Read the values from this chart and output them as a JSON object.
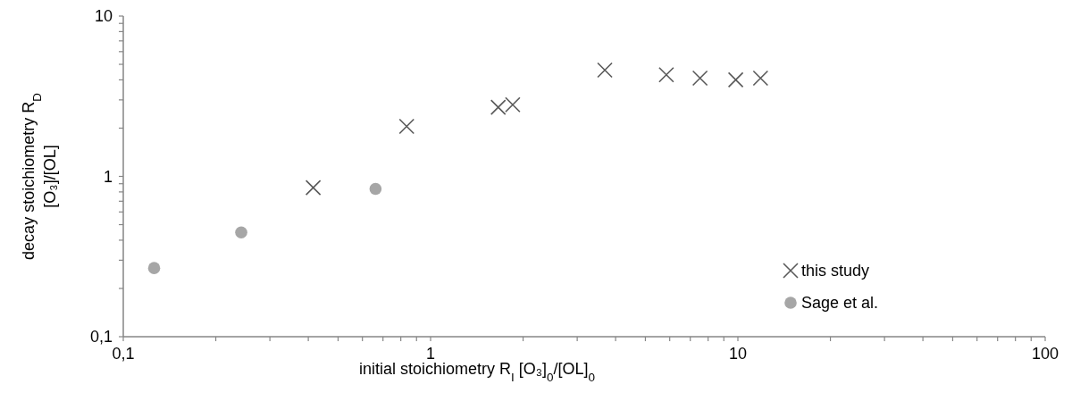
{
  "chart_data": {
    "type": "scatter",
    "xlabel": "initial stoichiometry R$_{I}$ [O₃]$_{0}$/[OL]$_{0}$",
    "ylabel": "decay stoichiometry R$_{D}$\n[O₃]/[OL]",
    "log": "xy",
    "xlim": [
      0.1,
      100
    ],
    "ylim": [
      0.1,
      10
    ],
    "xticks": [
      {
        "value": 0.1,
        "label": "0,1"
      },
      {
        "value": 0.2,
        "label": null
      },
      {
        "value": 0.3,
        "label": null
      },
      {
        "value": 0.4,
        "label": null
      },
      {
        "value": 0.5,
        "label": null
      },
      {
        "value": 0.6,
        "label": null
      },
      {
        "value": 0.7,
        "label": null
      },
      {
        "value": 0.8,
        "label": null
      },
      {
        "value": 0.9,
        "label": null
      },
      1,
      {
        "value": 2,
        "label": null
      },
      {
        "value": 3,
        "label": null
      },
      {
        "value": 4,
        "label": null
      },
      {
        "value": 5,
        "label": null
      },
      {
        "value": 6,
        "label": null
      },
      {
        "value": 7,
        "label": null
      },
      {
        "value": 8,
        "label": null
      },
      {
        "value": 9,
        "label": null
      },
      10,
      {
        "value": 20,
        "label": null
      },
      {
        "value": 30,
        "label": null
      },
      {
        "value": 40,
        "label": null
      },
      {
        "value": 50,
        "label": null
      },
      {
        "value": 60,
        "label": null
      },
      {
        "value": 70,
        "label": null
      },
      {
        "value": 80,
        "label": null
      },
      {
        "value": 90,
        "label": null
      },
      100
    ],
    "yticks": [
      {
        "value": 0.1,
        "label": "0,1"
      },
      {
        "value": 0.2,
        "label": null
      },
      {
        "value": 0.3,
        "label": null
      },
      {
        "value": 0.4,
        "label": null
      },
      {
        "value": 0.5,
        "label": null
      },
      {
        "value": 0.6,
        "label": null
      },
      {
        "value": 0.7,
        "label": null
      },
      {
        "value": 0.8,
        "label": null
      },
      {
        "value": 0.9,
        "label": null
      },
      1,
      {
        "value": 2,
        "label": null
      },
      {
        "value": 3,
        "label": null
      },
      {
        "value": 4,
        "label": null
      },
      {
        "value": 5,
        "label": null
      },
      {
        "value": 6,
        "label": null
      },
      {
        "value": 7,
        "label": null
      },
      {
        "value": 8,
        "label": null
      },
      {
        "value": 9,
        "label": null
      },
      10
    ],
    "grid": false,
    "legend": "bottom right",
    "series": [
      {
        "name": "this study",
        "color": "#595959",
        "marker": "cross",
        "x": [
          0.415,
          0.836,
          1.66,
          1.85,
          3.69,
          5.85,
          7.53,
          9.84,
          11.85
        ],
        "values": [
          0.85,
          2.05,
          2.7,
          2.8,
          4.6,
          4.3,
          4.1,
          4.0,
          4.1
        ]
      },
      {
        "name": "Sage et al.",
        "color": "#a6a6a6",
        "marker": "circle",
        "x": [
          0.126,
          0.242,
          0.662
        ],
        "values": [
          0.268,
          0.447,
          0.836
        ]
      }
    ]
  }
}
